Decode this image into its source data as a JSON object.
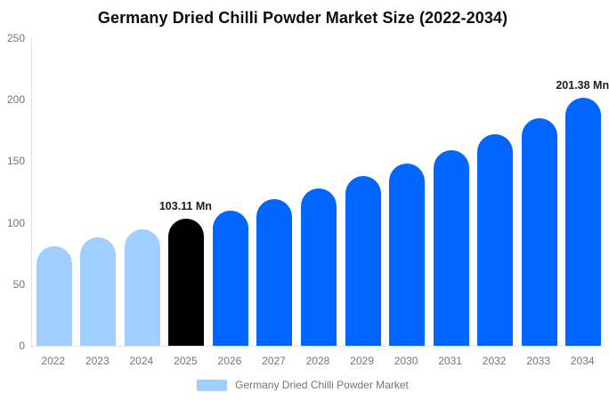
{
  "title": "Germany Dried Chilli Powder Market Size (2022-2034)",
  "colors": {
    "historical_bar": "#a0cfff",
    "base_year_bar": "#000000",
    "forecast_bar": "#0066ff",
    "axis_text": "#757575",
    "axis_line": "#e2e2e2",
    "annotation_text": "#1c1c1c"
  },
  "chart_data": {
    "type": "bar",
    "title": "Germany Dried Chilli Powder Market Size (2022-2034)",
    "xlabel": "",
    "ylabel": "",
    "unit": "Mn",
    "categories": [
      "2022",
      "2023",
      "2024",
      "2025",
      "2026",
      "2027",
      "2028",
      "2029",
      "2030",
      "2031",
      "2032",
      "2033",
      "2034"
    ],
    "values": [
      81,
      88,
      95,
      103.11,
      110,
      119,
      128,
      138,
      148,
      159,
      172,
      185,
      201.38
    ],
    "bar_colors": [
      "#a0cfff",
      "#a0cfff",
      "#a0cfff",
      "#000000",
      "#0066ff",
      "#0066ff",
      "#0066ff",
      "#0066ff",
      "#0066ff",
      "#0066ff",
      "#0066ff",
      "#0066ff",
      "#0066ff"
    ],
    "ylim": [
      0,
      250
    ],
    "yticks": [
      0,
      50,
      100,
      150,
      200,
      250
    ],
    "grid": false,
    "legend_position": "bottom",
    "annotations": [
      {
        "category": "2025",
        "index": 3,
        "text": "103.11 Mn"
      },
      {
        "category": "2034",
        "index": 12,
        "text": "201.38 Mn"
      }
    ]
  },
  "legend": {
    "label": "Germany Dried Chilli Powder Market",
    "swatch_color": "#a0cfff"
  }
}
